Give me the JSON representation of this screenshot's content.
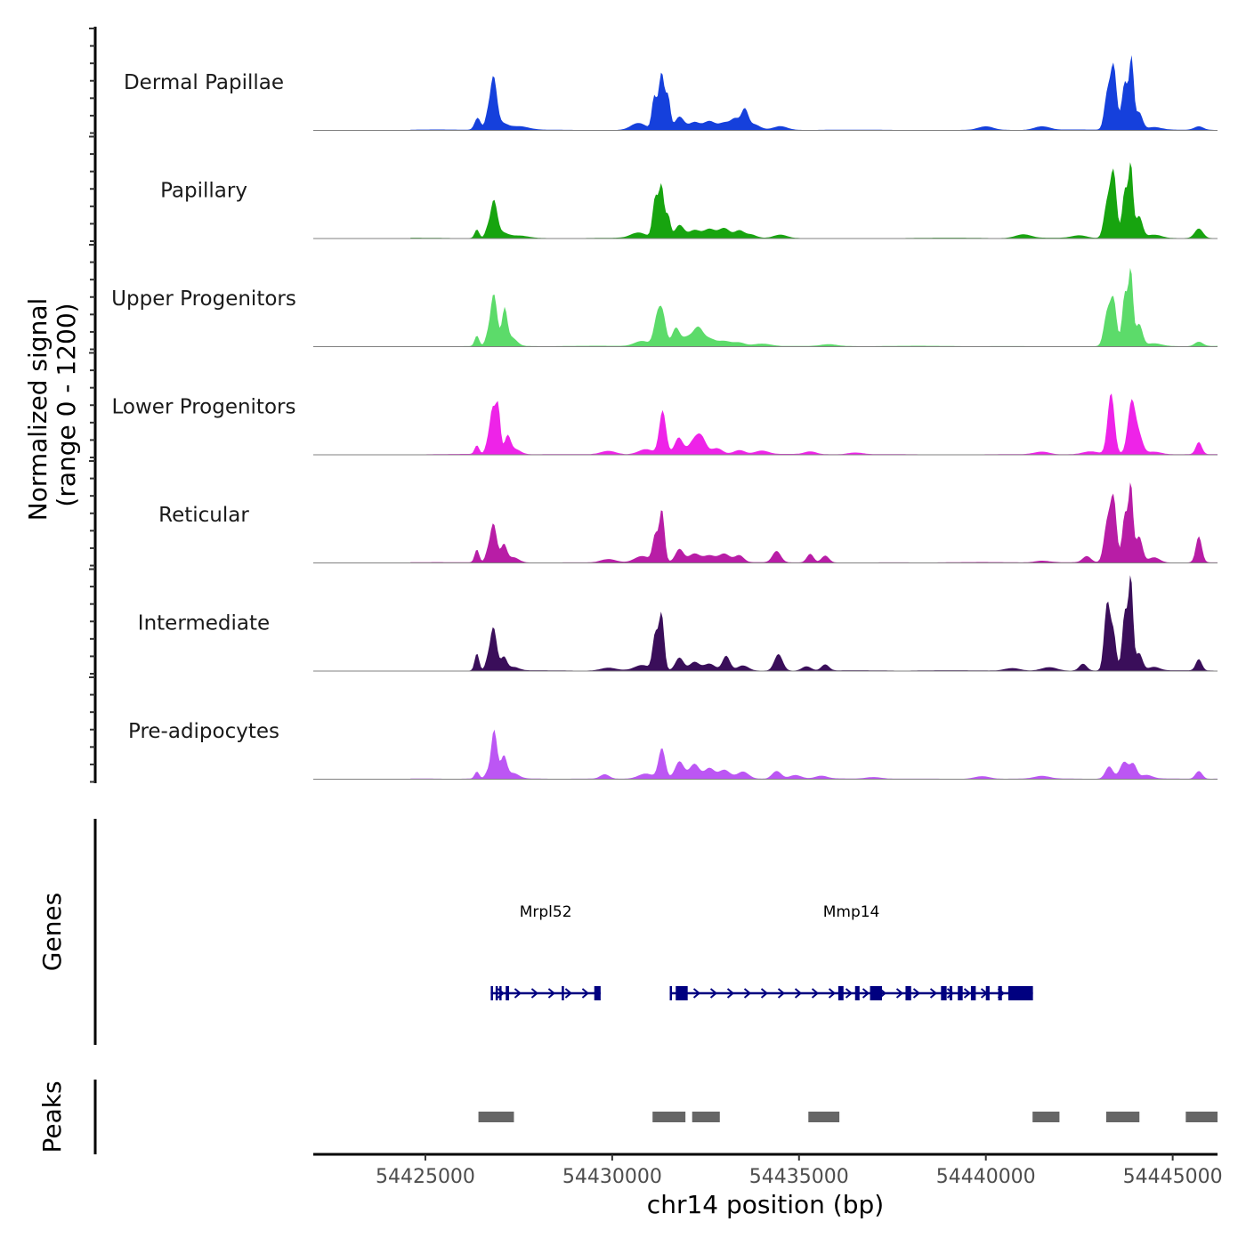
{
  "chart_data": {
    "type": "area",
    "title": "",
    "ylabel_line1": "Normalized signal",
    "ylabel_line2": "(range 0 - 1200)",
    "ylim": [
      0,
      1200
    ],
    "chromosome": "chr14",
    "xlabel": "chr14 position (bp)",
    "xlim": [
      54422000,
      54446200
    ],
    "xticks": [
      54425000,
      54430000,
      54435000,
      54440000,
      54445000
    ],
    "xtick_labels": [
      "54425000",
      "54430000",
      "54435000",
      "54440000",
      "54445000"
    ],
    "signal_range": [
      54424600,
      54446200
    ],
    "tracks": [
      {
        "name": "Dermal Papillae",
        "color": "#1540DC",
        "peaks": [
          [
            54426400,
            140,
            80
          ],
          [
            54426650,
            120,
            60
          ],
          [
            54426820,
            600,
            90
          ],
          [
            54427050,
            70,
            150
          ],
          [
            54427500,
            40,
            250
          ],
          [
            54430700,
            80,
            200
          ],
          [
            54431120,
            360,
            60
          ],
          [
            54431320,
            660,
            80
          ],
          [
            54431500,
            350,
            60
          ],
          [
            54431800,
            150,
            120
          ],
          [
            54432200,
            90,
            150
          ],
          [
            54432600,
            100,
            150
          ],
          [
            54433000,
            80,
            150
          ],
          [
            54433300,
            120,
            120
          ],
          [
            54433550,
            220,
            90
          ],
          [
            54433800,
            60,
            150
          ],
          [
            54434500,
            40,
            180
          ],
          [
            54440000,
            40,
            200
          ],
          [
            54441500,
            40,
            200
          ],
          [
            54443250,
            400,
            80
          ],
          [
            54443420,
            720,
            80
          ],
          [
            54443720,
            550,
            80
          ],
          [
            54443900,
            800,
            60
          ],
          [
            54444100,
            200,
            90
          ],
          [
            54444500,
            30,
            200
          ],
          [
            54445700,
            40,
            120
          ]
        ]
      },
      {
        "name": "Papillary",
        "color": "#17A40F",
        "peaks": [
          [
            54426380,
            100,
            60
          ],
          [
            54426650,
            80,
            60
          ],
          [
            54426830,
            420,
            90
          ],
          [
            54427050,
            60,
            150
          ],
          [
            54427500,
            30,
            250
          ],
          [
            54430700,
            60,
            200
          ],
          [
            54431150,
            450,
            70
          ],
          [
            54431320,
            600,
            70
          ],
          [
            54431500,
            250,
            60
          ],
          [
            54431800,
            150,
            120
          ],
          [
            54432200,
            90,
            150
          ],
          [
            54432600,
            100,
            150
          ],
          [
            54433000,
            110,
            150
          ],
          [
            54433400,
            80,
            120
          ],
          [
            54433700,
            40,
            150
          ],
          [
            54434500,
            40,
            180
          ],
          [
            54441000,
            40,
            200
          ],
          [
            54442500,
            30,
            200
          ],
          [
            54443250,
            400,
            90
          ],
          [
            54443420,
            720,
            80
          ],
          [
            54443720,
            550,
            70
          ],
          [
            54443880,
            830,
            60
          ],
          [
            54444100,
            250,
            90
          ],
          [
            54444500,
            40,
            200
          ],
          [
            54445700,
            110,
            110
          ]
        ]
      },
      {
        "name": "Upper Progenitors",
        "color": "#5CDB6A",
        "peaks": [
          [
            54426380,
            120,
            60
          ],
          [
            54426650,
            80,
            60
          ],
          [
            54426830,
            600,
            90
          ],
          [
            54427120,
            400,
            70
          ],
          [
            54427300,
            100,
            140
          ],
          [
            54430800,
            60,
            200
          ],
          [
            54431200,
            300,
            90
          ],
          [
            54431350,
            350,
            90
          ],
          [
            54431700,
            200,
            100
          ],
          [
            54432000,
            100,
            150
          ],
          [
            54432300,
            200,
            130
          ],
          [
            54432600,
            80,
            150
          ],
          [
            54433000,
            60,
            180
          ],
          [
            54433400,
            40,
            150
          ],
          [
            54434000,
            30,
            250
          ],
          [
            54435800,
            20,
            200
          ],
          [
            54443250,
            380,
            90
          ],
          [
            54443420,
            500,
            80
          ],
          [
            54443720,
            600,
            70
          ],
          [
            54443880,
            850,
            60
          ],
          [
            54444100,
            250,
            90
          ],
          [
            54444500,
            30,
            200
          ],
          [
            54445700,
            50,
            110
          ]
        ]
      },
      {
        "name": "Lower Progenitors",
        "color": "#EE23E8",
        "peaks": [
          [
            54426380,
            100,
            60
          ],
          [
            54426650,
            80,
            60
          ],
          [
            54426800,
            520,
            80
          ],
          [
            54426950,
            500,
            60
          ],
          [
            54427200,
            200,
            80
          ],
          [
            54427400,
            60,
            150
          ],
          [
            54429900,
            40,
            200
          ],
          [
            54430900,
            60,
            200
          ],
          [
            54431350,
            500,
            90
          ],
          [
            54431780,
            190,
            110
          ],
          [
            54432200,
            160,
            150
          ],
          [
            54432400,
            150,
            120
          ],
          [
            54432800,
            70,
            150
          ],
          [
            54433400,
            50,
            150
          ],
          [
            54434000,
            40,
            180
          ],
          [
            54435300,
            30,
            150
          ],
          [
            54436500,
            20,
            200
          ],
          [
            54441500,
            30,
            200
          ],
          [
            54442800,
            30,
            200
          ],
          [
            54443350,
            700,
            90
          ],
          [
            54443900,
            600,
            100
          ],
          [
            54444100,
            200,
            100
          ],
          [
            54444500,
            30,
            200
          ],
          [
            54445700,
            140,
            80
          ]
        ]
      },
      {
        "name": "Reticular",
        "color": "#B81DA6",
        "peaks": [
          [
            54426380,
            150,
            60
          ],
          [
            54426650,
            80,
            60
          ],
          [
            54426820,
            450,
            90
          ],
          [
            54427100,
            200,
            80
          ],
          [
            54427350,
            60,
            150
          ],
          [
            54429900,
            40,
            200
          ],
          [
            54430800,
            70,
            200
          ],
          [
            54431150,
            300,
            70
          ],
          [
            54431330,
            600,
            70
          ],
          [
            54431800,
            150,
            110
          ],
          [
            54432200,
            100,
            150
          ],
          [
            54432600,
            80,
            150
          ],
          [
            54433000,
            100,
            150
          ],
          [
            54433400,
            80,
            120
          ],
          [
            54434400,
            130,
            110
          ],
          [
            54435300,
            100,
            90
          ],
          [
            54435700,
            80,
            100
          ],
          [
            54441500,
            20,
            200
          ],
          [
            54442700,
            70,
            110
          ],
          [
            54443250,
            450,
            90
          ],
          [
            54443420,
            700,
            80
          ],
          [
            54443720,
            550,
            70
          ],
          [
            54443880,
            880,
            60
          ],
          [
            54444100,
            300,
            90
          ],
          [
            54444500,
            60,
            150
          ],
          [
            54445700,
            300,
            80
          ]
        ]
      },
      {
        "name": "Intermediate",
        "color": "#3A0E5A",
        "peaks": [
          [
            54426380,
            200,
            60
          ],
          [
            54426650,
            80,
            60
          ],
          [
            54426820,
            500,
            90
          ],
          [
            54427100,
            150,
            80
          ],
          [
            54427350,
            40,
            150
          ],
          [
            54429900,
            30,
            200
          ],
          [
            54430800,
            60,
            200
          ],
          [
            54431150,
            400,
            70
          ],
          [
            54431320,
            650,
            70
          ],
          [
            54431800,
            150,
            110
          ],
          [
            54432200,
            100,
            130
          ],
          [
            54432600,
            80,
            150
          ],
          [
            54433050,
            170,
            100
          ],
          [
            54433500,
            60,
            150
          ],
          [
            54434450,
            190,
            110
          ],
          [
            54435200,
            50,
            120
          ],
          [
            54435700,
            70,
            100
          ],
          [
            54440700,
            30,
            200
          ],
          [
            54441700,
            40,
            200
          ],
          [
            54442600,
            80,
            100
          ],
          [
            54443250,
            780,
            80
          ],
          [
            54443420,
            400,
            70
          ],
          [
            54443720,
            670,
            70
          ],
          [
            54443880,
            1050,
            60
          ],
          [
            54444100,
            200,
            90
          ],
          [
            54444500,
            40,
            150
          ],
          [
            54445700,
            130,
            80
          ]
        ]
      },
      {
        "name": "Pre-adipocytes",
        "color": "#BC56F4",
        "peaks": [
          [
            54426380,
            80,
            60
          ],
          [
            54426650,
            60,
            60
          ],
          [
            54426840,
            560,
            80
          ],
          [
            54427100,
            250,
            80
          ],
          [
            54427350,
            60,
            150
          ],
          [
            54429800,
            50,
            120
          ],
          [
            54430900,
            60,
            200
          ],
          [
            54431330,
            350,
            90
          ],
          [
            54431800,
            200,
            120
          ],
          [
            54432200,
            170,
            130
          ],
          [
            54432600,
            120,
            130
          ],
          [
            54433000,
            100,
            150
          ],
          [
            54433500,
            80,
            150
          ],
          [
            54434400,
            90,
            120
          ],
          [
            54434900,
            40,
            150
          ],
          [
            54435600,
            30,
            150
          ],
          [
            54437000,
            20,
            200
          ],
          [
            54439900,
            30,
            200
          ],
          [
            54441500,
            30,
            200
          ],
          [
            54443300,
            140,
            100
          ],
          [
            54443700,
            190,
            110
          ],
          [
            54443950,
            160,
            90
          ],
          [
            54444300,
            40,
            150
          ],
          [
            54445700,
            90,
            90
          ]
        ]
      }
    ],
    "genes_panel_label": "Genes",
    "genes": [
      {
        "name": "Mrpl52",
        "strand": "+",
        "start": 54426750,
        "end": 54429690,
        "exons": [
          [
            54426750,
            54426770
          ],
          [
            54426880,
            54426910
          ],
          [
            54426980,
            54427010
          ],
          [
            54427150,
            54427240
          ],
          [
            54428650,
            54428700
          ],
          [
            54429520,
            54429690
          ]
        ]
      },
      {
        "name": "Mmp14",
        "strand": "+",
        "start": 54431540,
        "end": 54441260,
        "exons": [
          [
            54431540,
            54431600
          ],
          [
            54431700,
            54432020
          ],
          [
            54436050,
            54436190
          ],
          [
            54436500,
            54436620
          ],
          [
            54436900,
            54437220
          ],
          [
            54437850,
            54438000
          ],
          [
            54438800,
            54438950
          ],
          [
            54439030,
            54439100
          ],
          [
            54439250,
            54439380
          ],
          [
            54439600,
            54439730
          ],
          [
            54440000,
            54440100
          ],
          [
            54440330,
            54440430
          ],
          [
            54440600,
            54441260
          ]
        ]
      }
    ],
    "peaks_panel_label": "Peaks",
    "peak_regions": [
      [
        54426420,
        54427370
      ],
      [
        54431080,
        54431960
      ],
      [
        54432140,
        54432880
      ],
      [
        54435250,
        54436080
      ],
      [
        54441250,
        54441970
      ],
      [
        54443220,
        54444110
      ],
      [
        54445350,
        54446200
      ]
    ]
  }
}
